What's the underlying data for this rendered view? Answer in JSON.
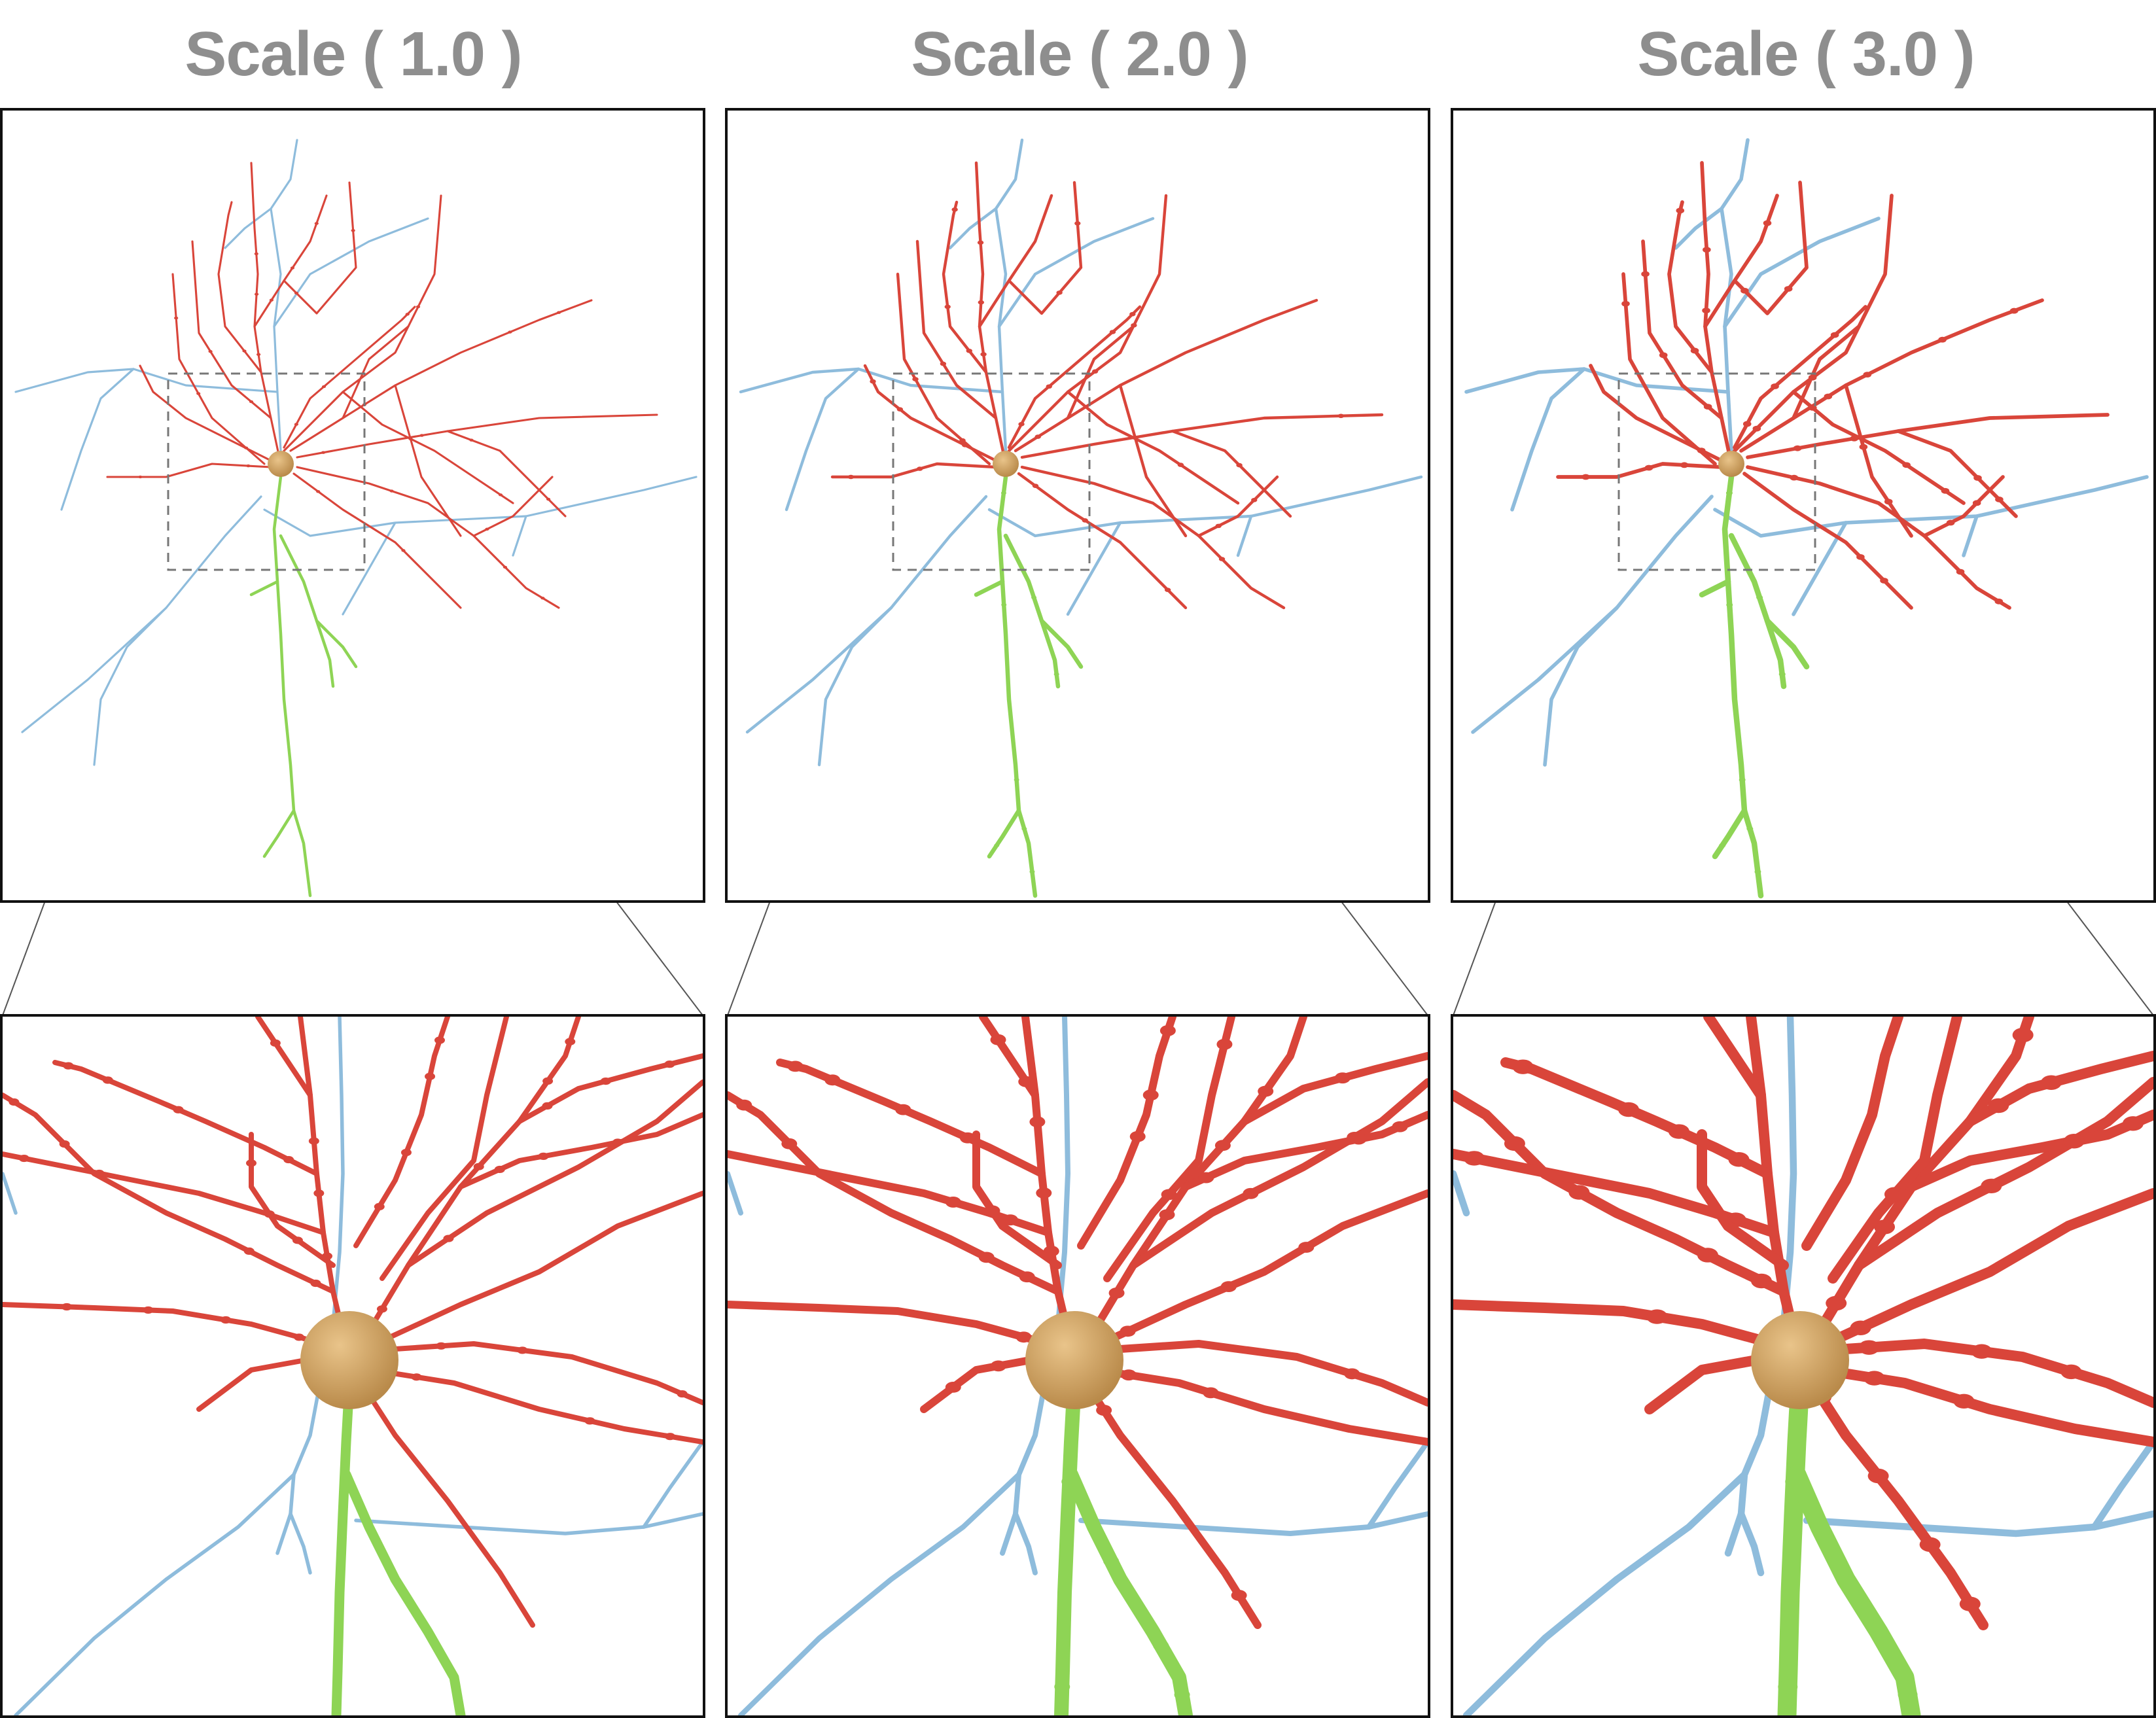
{
  "titles": [
    "Scale ( 1.0 )",
    "Scale ( 2.0 )",
    "Scale ( 3.0 )"
  ],
  "scales": [
    1.0,
    2.0,
    3.0
  ],
  "colors": {
    "dendrite": "#d9453a",
    "axon_blue": "#8ebcdc",
    "axon_green": "#8ed455",
    "soma": "#d7a865",
    "frame": "#111111",
    "title": "#8e8e8e",
    "zoom_box": "#777777"
  }
}
